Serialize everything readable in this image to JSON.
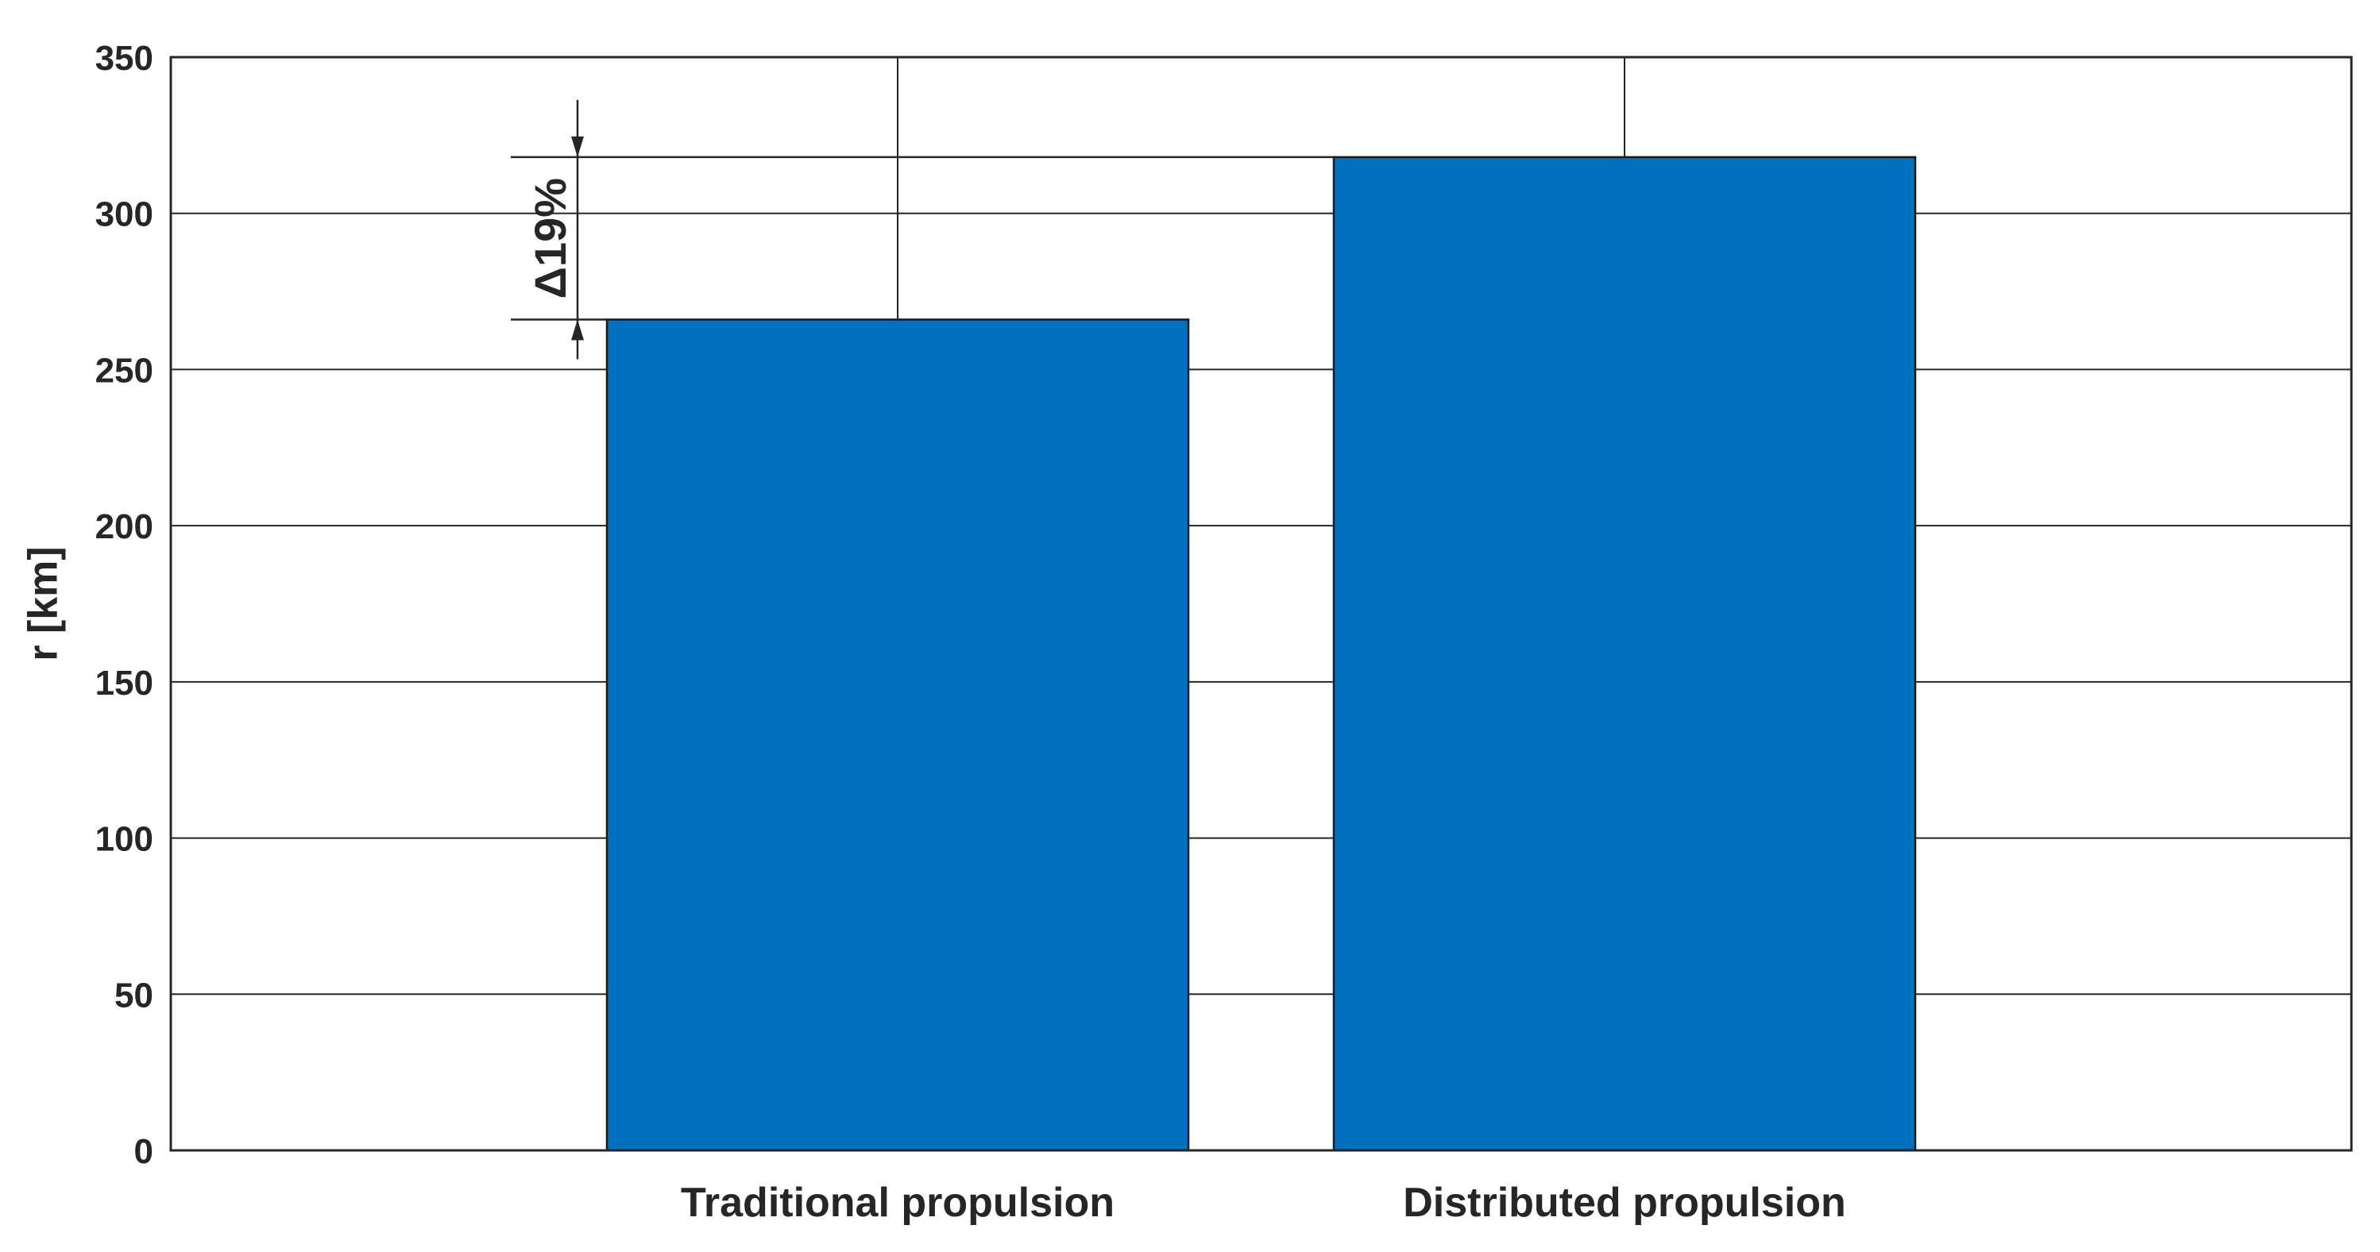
{
  "chart_data": {
    "type": "bar",
    "categories": [
      "Traditional propulsion",
      "Distributed propulsion"
    ],
    "values": [
      266,
      318
    ],
    "ylabel": "r [km]",
    "xlabel": "",
    "ylim": [
      0,
      350
    ],
    "yticks": [
      "0",
      "50",
      "100",
      "150",
      "200",
      "250",
      "300",
      "350"
    ],
    "grid": true,
    "bar_color": "#0070BF",
    "annotation": {
      "text": "Δ19%",
      "from_value": 266,
      "to_value": 318
    }
  }
}
